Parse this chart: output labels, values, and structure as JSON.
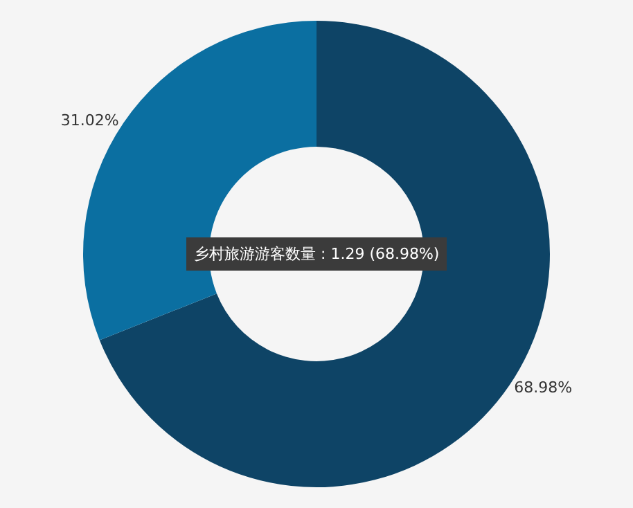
{
  "chart_data": {
    "type": "donut",
    "categories": [
      null,
      null
    ],
    "values": [
      68.98,
      31.02
    ],
    "colors": [
      "#0e4466",
      "#0b6fa1"
    ],
    "value_labels": [
      "68.98%",
      "31.02%"
    ],
    "annotations": [
      "乡村旅游游客数量 : 1.29 (68.98%)"
    ],
    "legend": false
  }
}
